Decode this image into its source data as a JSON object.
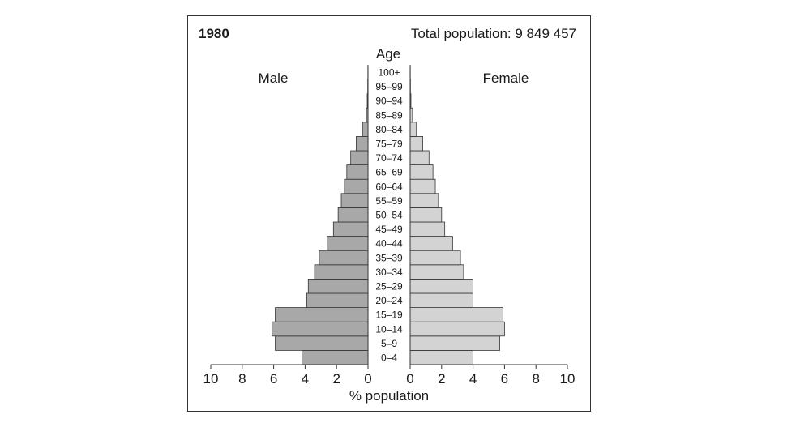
{
  "chart_data": {
    "type": "bar",
    "year": "1980",
    "total_population_label": "Total population: 9 849 457",
    "age_axis_title": "Age",
    "xlabel": "% population",
    "male_label": "Male",
    "female_label": "Female",
    "age_groups": [
      "0–4",
      "5–9",
      "10–14",
      "15–19",
      "20–24",
      "25–29",
      "30–34",
      "35–39",
      "40–44",
      "45–49",
      "50–54",
      "55–59",
      "60–64",
      "65–69",
      "70–74",
      "75–79",
      "80–84",
      "85–89",
      "90–94",
      "95–99",
      "100+"
    ],
    "series": [
      {
        "name": "Male",
        "values": [
          4.2,
          5.9,
          6.1,
          5.9,
          3.9,
          3.8,
          3.4,
          3.1,
          2.6,
          2.2,
          1.9,
          1.7,
          1.5,
          1.35,
          1.1,
          0.75,
          0.35,
          0.1,
          0.05,
          0.02,
          0.01
        ]
      },
      {
        "name": "Female",
        "values": [
          4.0,
          5.7,
          6.0,
          5.9,
          4.0,
          4.0,
          3.4,
          3.2,
          2.7,
          2.2,
          2.0,
          1.8,
          1.6,
          1.45,
          1.2,
          0.8,
          0.4,
          0.15,
          0.05,
          0.02,
          0.01
        ]
      }
    ],
    "x_ticks_left": [
      "10",
      "8",
      "6",
      "4",
      "2",
      "0"
    ],
    "x_ticks_right": [
      "0",
      "2",
      "4",
      "6",
      "8",
      "10"
    ],
    "xlim": [
      0,
      10
    ],
    "grid": false,
    "colors": {
      "male": "#a8a8a8",
      "female": "#d3d3d3",
      "outline": "#333333"
    }
  }
}
